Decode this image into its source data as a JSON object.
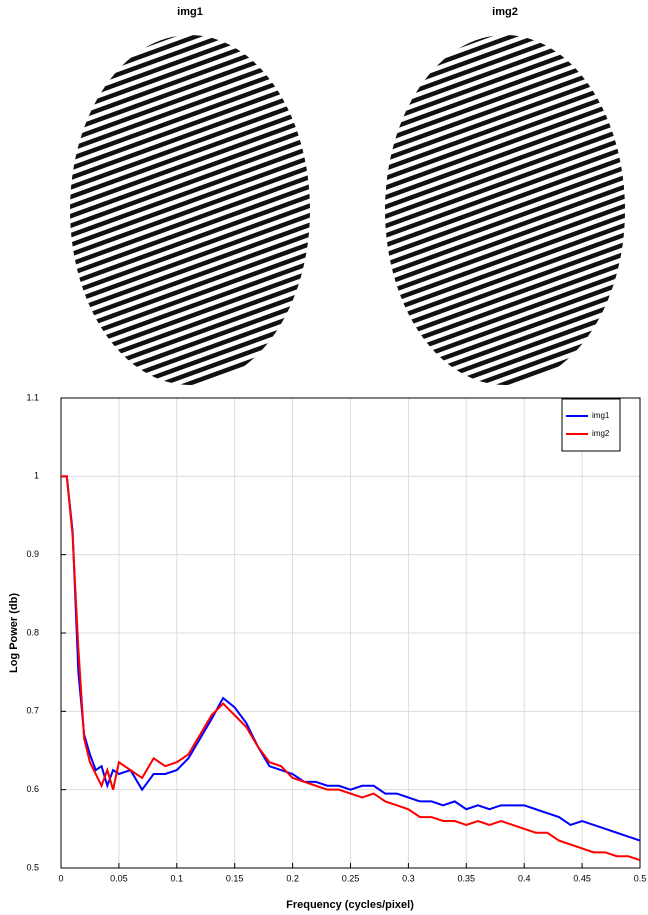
{
  "images": [
    {
      "title": "img1"
    },
    {
      "title": "img2"
    }
  ],
  "chart_data": {
    "type": "line",
    "x_label": "Frequency (cycles/pixel)",
    "y_label": "Log Power (db)",
    "x": [
      0,
      0.005,
      0.01,
      0.015,
      0.02,
      0.025,
      0.03,
      0.035,
      0.04,
      0.045,
      0.05,
      0.06,
      0.07,
      0.08,
      0.09,
      0.1,
      0.11,
      0.12,
      0.13,
      0.14,
      0.15,
      0.16,
      0.17,
      0.18,
      0.19,
      0.2,
      0.21,
      0.22,
      0.23,
      0.24,
      0.25,
      0.26,
      0.27,
      0.28,
      0.29,
      0.3,
      0.31,
      0.32,
      0.33,
      0.34,
      0.35,
      0.36,
      0.37,
      0.38,
      0.39,
      0.4,
      0.41,
      0.42,
      0.43,
      0.44,
      0.45,
      0.46,
      0.47,
      0.48,
      0.49,
      0.5
    ],
    "series": [
      {
        "name": "img1",
        "color": "#0000ff",
        "values": [
          1,
          1,
          0.93,
          0.75,
          0.67,
          0.645,
          0.625,
          0.63,
          0.605,
          0.625,
          0.62,
          0.625,
          0.6,
          0.62,
          0.62,
          0.625,
          0.64,
          0.665,
          0.69,
          0.717,
          0.705,
          0.685,
          0.655,
          0.63,
          0.625,
          0.62,
          0.61,
          0.61,
          0.605,
          0.605,
          0.6,
          0.605,
          0.605,
          0.595,
          0.595,
          0.59,
          0.585,
          0.585,
          0.58,
          0.585,
          0.575,
          0.58,
          0.575,
          0.58,
          0.58,
          0.58,
          0.575,
          0.57,
          0.565,
          0.555,
          0.56,
          0.555,
          0.55,
          0.545,
          0.54,
          0.535
        ]
      },
      {
        "name": "img2",
        "color": "#ff0000",
        "values": [
          1,
          1,
          0.925,
          0.78,
          0.665,
          0.635,
          0.62,
          0.605,
          0.625,
          0.6,
          0.635,
          0.625,
          0.615,
          0.64,
          0.63,
          0.635,
          0.645,
          0.67,
          0.695,
          0.71,
          0.695,
          0.68,
          0.655,
          0.635,
          0.63,
          0.615,
          0.61,
          0.605,
          0.6,
          0.6,
          0.595,
          0.59,
          0.595,
          0.585,
          0.58,
          0.575,
          0.565,
          0.565,
          0.56,
          0.56,
          0.555,
          0.56,
          0.555,
          0.56,
          0.555,
          0.55,
          0.545,
          0.545,
          0.535,
          0.53,
          0.525,
          0.52,
          0.52,
          0.515,
          0.515,
          0.51
        ]
      }
    ],
    "xlim": [
      0,
      0.5
    ],
    "ylim": [
      0.5,
      1.1
    ],
    "xticks": [
      0,
      0.05,
      0.1,
      0.15,
      0.2,
      0.25,
      0.3,
      0.35,
      0.4,
      0.45,
      0.5
    ],
    "yticks": [
      0.5,
      0.6,
      0.7,
      0.8,
      0.9,
      1,
      1.1
    ],
    "grid": true,
    "legend": "upper right"
  }
}
